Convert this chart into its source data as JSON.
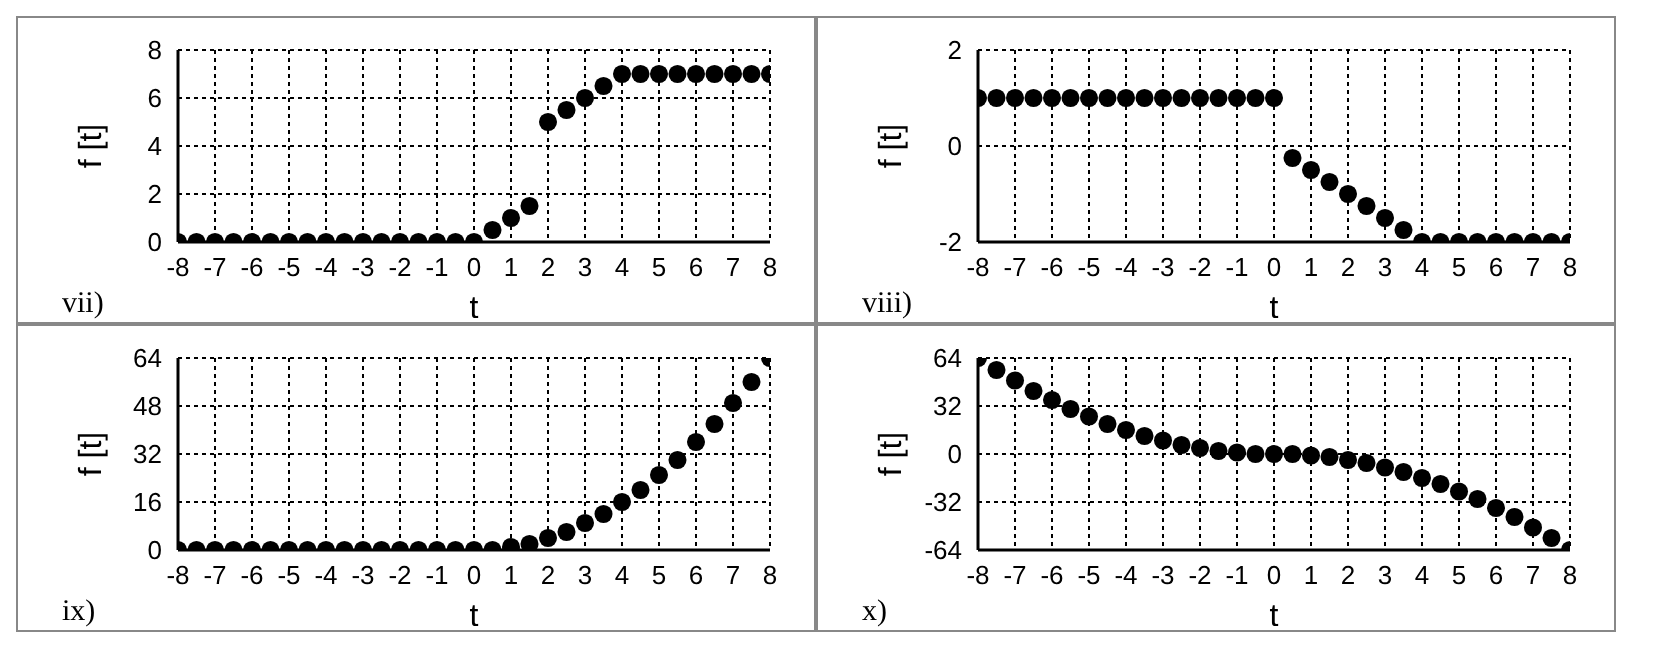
{
  "chart_data": [
    {
      "type": "scatter",
      "xlabel": "t",
      "ylabel": "f [t]",
      "annotations": [
        "vii)"
      ],
      "marker": "circle",
      "grid": true,
      "xlim": [
        -8,
        8
      ],
      "xticks": [
        -8,
        -7,
        -6,
        -5,
        -4,
        -3,
        -2,
        -1,
        0,
        1,
        2,
        3,
        4,
        5,
        6,
        7,
        8
      ],
      "ylim": [
        0,
        8
      ],
      "yticks": [
        0,
        2,
        4,
        6,
        8
      ],
      "x": [
        -8,
        -7.5,
        -7,
        -6.5,
        -6,
        -5.5,
        -5,
        -4.5,
        -4,
        -3.5,
        -3,
        -2.5,
        -2,
        -1.5,
        -1,
        -0.5,
        0,
        0.5,
        1,
        1.5,
        2,
        2.5,
        3,
        3.5,
        4,
        4.5,
        5,
        5.5,
        6,
        6.5,
        7,
        7.5,
        8
      ],
      "series": [
        {
          "color": "#000000",
          "values": [
            0,
            0,
            0,
            0,
            0,
            0,
            0,
            0,
            0,
            0,
            0,
            0,
            0,
            0,
            0,
            0,
            0,
            0.5,
            1,
            1.5,
            5,
            5.5,
            6,
            6.5,
            7,
            7,
            7,
            7,
            7,
            7,
            7,
            7,
            7
          ]
        }
      ]
    },
    {
      "type": "scatter",
      "xlabel": "t",
      "ylabel": "f [t]",
      "annotations": [
        "viii)"
      ],
      "marker": "circle",
      "grid": true,
      "xlim": [
        -8,
        8
      ],
      "xticks": [
        -8,
        -7,
        -6,
        -5,
        -4,
        -3,
        -2,
        -1,
        0,
        1,
        2,
        3,
        4,
        5,
        6,
        7,
        8
      ],
      "ylim": [
        -2,
        2
      ],
      "yticks": [
        -2,
        0,
        2
      ],
      "x": [
        -8,
        -7.5,
        -7,
        -6.5,
        -6,
        -5.5,
        -5,
        -4.5,
        -4,
        -3.5,
        -3,
        -2.5,
        -2,
        -1.5,
        -1,
        -0.5,
        0,
        0.5,
        1,
        1.5,
        2,
        2.5,
        3,
        3.5,
        4,
        4.5,
        5,
        5.5,
        6,
        6.5,
        7,
        7.5,
        8
      ],
      "series": [
        {
          "color": "#000000",
          "values": [
            1,
            1,
            1,
            1,
            1,
            1,
            1,
            1,
            1,
            1,
            1,
            1,
            1,
            1,
            1,
            1,
            1,
            -0.25,
            -0.5,
            -0.75,
            -1,
            -1.25,
            -1.5,
            -1.75,
            -2,
            -2,
            -2,
            -2,
            -2,
            -2,
            -2,
            -2,
            -2
          ]
        }
      ]
    },
    {
      "type": "scatter",
      "xlabel": "t",
      "ylabel": "f [t]",
      "annotations": [
        "ix)"
      ],
      "marker": "circle",
      "grid": true,
      "xlim": [
        -8,
        8
      ],
      "xticks": [
        -8,
        -7,
        -6,
        -5,
        -4,
        -3,
        -2,
        -1,
        0,
        1,
        2,
        3,
        4,
        5,
        6,
        7,
        8
      ],
      "ylim": [
        0,
        64
      ],
      "yticks": [
        0,
        16,
        32,
        48,
        64
      ],
      "x": [
        -8,
        -7.5,
        -7,
        -6.5,
        -6,
        -5.5,
        -5,
        -4.5,
        -4,
        -3.5,
        -3,
        -2.5,
        -2,
        -1.5,
        -1,
        -0.5,
        0,
        0.5,
        1,
        1.5,
        2,
        2.5,
        3,
        3.5,
        4,
        4.5,
        5,
        5.5,
        6,
        6.5,
        7,
        7.5,
        8
      ],
      "series": [
        {
          "color": "#000000",
          "values": [
            0,
            0,
            0,
            0,
            0,
            0,
            0,
            0,
            0,
            0,
            0,
            0,
            0,
            0,
            0,
            0,
            0,
            0,
            1,
            2,
            4,
            6,
            9,
            12,
            16,
            20,
            25,
            30,
            36,
            42,
            49,
            56,
            64
          ]
        }
      ]
    },
    {
      "type": "scatter",
      "xlabel": "t",
      "ylabel": "f [t]",
      "annotations": [
        "x)"
      ],
      "marker": "circle",
      "grid": true,
      "xlim": [
        -8,
        8
      ],
      "xticks": [
        -8,
        -7,
        -6,
        -5,
        -4,
        -3,
        -2,
        -1,
        0,
        1,
        2,
        3,
        4,
        5,
        6,
        7,
        8
      ],
      "ylim": [
        -64,
        64
      ],
      "yticks": [
        -64,
        -32,
        0,
        32,
        64
      ],
      "x": [
        -8,
        -7.5,
        -7,
        -6.5,
        -6,
        -5.5,
        -5,
        -4.5,
        -4,
        -3.5,
        -3,
        -2.5,
        -2,
        -1.5,
        -1,
        -0.5,
        0,
        0.5,
        1,
        1.5,
        2,
        2.5,
        3,
        3.5,
        4,
        4.5,
        5,
        5.5,
        6,
        6.5,
        7,
        7.5,
        8
      ],
      "series": [
        {
          "color": "#000000",
          "values": [
            64,
            56,
            49,
            42,
            36,
            30,
            25,
            20,
            16,
            12,
            9,
            6,
            4,
            2,
            1,
            0,
            0,
            0,
            -1,
            -2,
            -4,
            -6,
            -9,
            -12,
            -16,
            -20,
            -25,
            -30,
            -36,
            -42,
            -49,
            -56,
            -64
          ]
        }
      ]
    }
  ]
}
